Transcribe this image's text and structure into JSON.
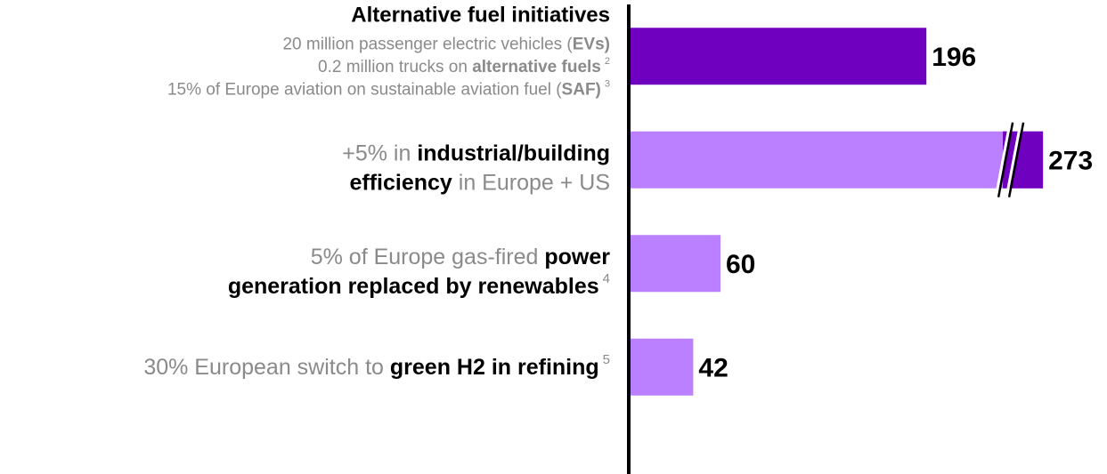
{
  "chart_data": {
    "type": "bar",
    "orientation": "horizontal",
    "categories": [
      {
        "lines": [
          [
            {
              "text": "Alternative fuel initiatives",
              "bold": true,
              "dark": true
            }
          ],
          [
            {
              "text": "20 million passenger electric vehicles (",
              "bold": false,
              "dark": false
            },
            {
              "text": "EVs)",
              "bold": true,
              "dark": false
            }
          ],
          [
            {
              "text": "0.2 million trucks on ",
              "bold": false,
              "dark": false
            },
            {
              "text": "alternative fuels",
              "bold": true,
              "dark": false
            },
            {
              "text": "2",
              "sup": true,
              "dark": false
            }
          ],
          [
            {
              "text": "15% of Europe aviation on sustainable aviation fuel (",
              "bold": false,
              "dark": false
            },
            {
              "text": "SAF)",
              "bold": true,
              "dark": false
            },
            {
              "text": "3",
              "sup": true,
              "dark": false
            }
          ]
        ]
      },
      {
        "lines": [
          [
            {
              "text": "+5% in ",
              "bold": false,
              "dark": false
            },
            {
              "text": "industrial/building",
              "bold": true,
              "dark": true
            }
          ],
          [
            {
              "text": "efficiency",
              "bold": true,
              "dark": true
            },
            {
              "text": " in Europe + US",
              "bold": false,
              "dark": false
            }
          ]
        ]
      },
      {
        "lines": [
          [
            {
              "text": "5% of Europe gas-fired ",
              "bold": false,
              "dark": false
            },
            {
              "text": "power",
              "bold": true,
              "dark": true
            }
          ],
          [
            {
              "text": "generation replaced by renewables",
              "bold": true,
              "dark": true
            },
            {
              "text": "4",
              "sup": true,
              "dark": false
            }
          ]
        ]
      },
      {
        "lines": [
          [
            {
              "text": "30% European switch to ",
              "bold": false,
              "dark": false
            },
            {
              "text": "green H2 in refining",
              "bold": true,
              "dark": true
            },
            {
              "text": "5",
              "sup": true,
              "dark": false
            }
          ]
        ]
      }
    ],
    "values": [
      196,
      273,
      60,
      42
    ],
    "colors": [
      "#7000c0",
      "#bb80ff",
      "#bb80ff",
      "#bb80ff"
    ],
    "break_color": "#7000c0",
    "broken": [
      false,
      true,
      false,
      false
    ],
    "xlim": [
      0,
      300
    ]
  }
}
